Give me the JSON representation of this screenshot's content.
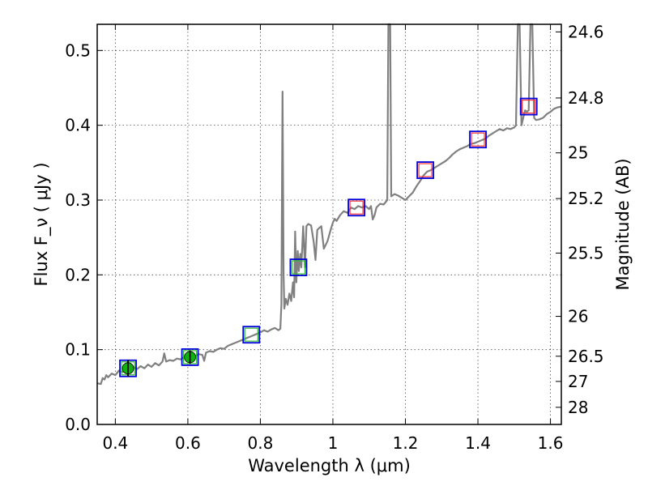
{
  "chart_data": {
    "type": "line",
    "title": "",
    "xlabel": "Wavelength  λ (μm)",
    "ylabel": "Flux  F_ν  ( μJy )",
    "y2label": "Magnitude (AB)",
    "xlim": [
      0.35,
      1.63
    ],
    "ylim": [
      0.0,
      0.535
    ],
    "x_ticks": [
      0.4,
      0.6,
      0.8,
      1.0,
      1.2,
      1.4,
      1.6
    ],
    "x_tick_labels": [
      "0.4",
      "0.6",
      "0.8",
      "1",
      "1.2",
      "1.4",
      "1.6"
    ],
    "y_ticks": [
      0.0,
      0.1,
      0.2,
      0.3,
      0.4,
      0.5
    ],
    "y_tick_labels": [
      "0.0",
      "0.1",
      "0.2",
      "0.3",
      "0.4",
      "0.5"
    ],
    "y2_ticks": [
      {
        "label": "24.6",
        "flux": 0.5248
      },
      {
        "label": "24.8",
        "flux": 0.4365
      },
      {
        "label": "25",
        "flux": 0.3631
      },
      {
        "label": "25.2",
        "flux": 0.302
      },
      {
        "label": "25.5",
        "flux": 0.2291
      },
      {
        "label": "26",
        "flux": 0.1445
      },
      {
        "label": "26.5",
        "flux": 0.0912
      },
      {
        "label": "27",
        "flux": 0.0575
      },
      {
        "label": "28",
        "flux": 0.0229
      }
    ],
    "grid": true,
    "colors": {
      "spectrum": "#808080",
      "observed_marker": "#10b010",
      "model_box": "#0000dd",
      "model_inner_red": "#ff3333",
      "model_inner_green": "#33bb33"
    },
    "series": [
      {
        "kind": "spectrum",
        "points": [
          [
            0.35,
            0.055
          ],
          [
            0.36,
            0.054
          ],
          [
            0.365,
            0.062
          ],
          [
            0.37,
            0.06
          ],
          [
            0.375,
            0.066
          ],
          [
            0.38,
            0.063
          ],
          [
            0.39,
            0.068
          ],
          [
            0.4,
            0.066
          ],
          [
            0.41,
            0.072
          ],
          [
            0.42,
            0.07
          ],
          [
            0.43,
            0.075
          ],
          [
            0.44,
            0.073
          ],
          [
            0.45,
            0.077
          ],
          [
            0.46,
            0.074
          ],
          [
            0.47,
            0.078
          ],
          [
            0.48,
            0.075
          ],
          [
            0.49,
            0.08
          ],
          [
            0.5,
            0.077
          ],
          [
            0.51,
            0.082
          ],
          [
            0.52,
            0.079
          ],
          [
            0.53,
            0.084
          ],
          [
            0.535,
            0.095
          ],
          [
            0.54,
            0.084
          ],
          [
            0.55,
            0.086
          ],
          [
            0.56,
            0.085
          ],
          [
            0.57,
            0.088
          ],
          [
            0.58,
            0.087
          ],
          [
            0.59,
            0.09
          ],
          [
            0.6,
            0.089
          ],
          [
            0.61,
            0.092
          ],
          [
            0.62,
            0.091
          ],
          [
            0.63,
            0.094
          ],
          [
            0.64,
            0.093
          ],
          [
            0.645,
            0.085
          ],
          [
            0.65,
            0.096
          ],
          [
            0.66,
            0.098
          ],
          [
            0.67,
            0.097
          ],
          [
            0.68,
            0.1
          ],
          [
            0.69,
            0.102
          ],
          [
            0.7,
            0.101
          ],
          [
            0.71,
            0.105
          ],
          [
            0.72,
            0.107
          ],
          [
            0.73,
            0.109
          ],
          [
            0.74,
            0.111
          ],
          [
            0.75,
            0.113
          ],
          [
            0.76,
            0.115
          ],
          [
            0.77,
            0.117
          ],
          [
            0.78,
            0.119
          ],
          [
            0.79,
            0.121
          ],
          [
            0.8,
            0.123
          ],
          [
            0.81,
            0.126
          ],
          [
            0.82,
            0.124
          ],
          [
            0.83,
            0.127
          ],
          [
            0.84,
            0.129
          ],
          [
            0.85,
            0.126
          ],
          [
            0.855,
            0.128
          ],
          [
            0.858,
            0.16
          ],
          [
            0.861,
            0.445
          ],
          [
            0.864,
            0.2
          ],
          [
            0.866,
            0.155
          ],
          [
            0.87,
            0.168
          ],
          [
            0.875,
            0.16
          ],
          [
            0.88,
            0.175
          ],
          [
            0.885,
            0.165
          ],
          [
            0.89,
            0.19
          ],
          [
            0.893,
            0.17
          ],
          [
            0.896,
            0.258
          ],
          [
            0.899,
            0.19
          ],
          [
            0.903,
            0.232
          ],
          [
            0.906,
            0.205
          ],
          [
            0.91,
            0.228
          ],
          [
            0.913,
            0.21
          ],
          [
            0.918,
            0.265
          ],
          [
            0.923,
            0.21
          ],
          [
            0.927,
            0.265
          ],
          [
            0.932,
            0.268
          ],
          [
            0.94,
            0.266
          ],
          [
            0.947,
            0.244
          ],
          [
            0.952,
            0.22
          ],
          [
            0.957,
            0.26
          ],
          [
            0.963,
            0.263
          ],
          [
            0.968,
            0.265
          ],
          [
            0.975,
            0.235
          ],
          [
            0.985,
            0.245
          ],
          [
            0.995,
            0.262
          ],
          [
            1.0,
            0.27
          ],
          [
            1.005,
            0.275
          ],
          [
            1.01,
            0.272
          ],
          [
            1.02,
            0.28
          ],
          [
            1.03,
            0.285
          ],
          [
            1.04,
            0.283
          ],
          [
            1.05,
            0.29
          ],
          [
            1.06,
            0.288
          ],
          [
            1.07,
            0.292
          ],
          [
            1.08,
            0.29
          ],
          [
            1.09,
            0.292
          ],
          [
            1.1,
            0.288
          ],
          [
            1.105,
            0.292
          ],
          [
            1.11,
            0.274
          ],
          [
            1.115,
            0.28
          ],
          [
            1.12,
            0.29
          ],
          [
            1.13,
            0.295
          ],
          [
            1.14,
            0.294
          ],
          [
            1.15,
            0.3
          ],
          [
            1.153,
            0.535
          ],
          [
            1.158,
            0.535
          ],
          [
            1.161,
            0.305
          ],
          [
            1.17,
            0.308
          ],
          [
            1.18,
            0.306
          ],
          [
            1.19,
            0.303
          ],
          [
            1.2,
            0.3
          ],
          [
            1.21,
            0.305
          ],
          [
            1.22,
            0.31
          ],
          [
            1.23,
            0.318
          ],
          [
            1.24,
            0.325
          ],
          [
            1.25,
            0.333
          ],
          [
            1.26,
            0.338
          ],
          [
            1.27,
            0.34
          ],
          [
            1.28,
            0.343
          ],
          [
            1.29,
            0.346
          ],
          [
            1.3,
            0.349
          ],
          [
            1.31,
            0.352
          ],
          [
            1.32,
            0.356
          ],
          [
            1.33,
            0.361
          ],
          [
            1.34,
            0.365
          ],
          [
            1.35,
            0.368
          ],
          [
            1.36,
            0.37
          ],
          [
            1.37,
            0.372
          ],
          [
            1.38,
            0.375
          ],
          [
            1.39,
            0.376
          ],
          [
            1.4,
            0.378
          ],
          [
            1.41,
            0.38
          ],
          [
            1.42,
            0.382
          ],
          [
            1.43,
            0.386
          ],
          [
            1.44,
            0.389
          ],
          [
            1.45,
            0.392
          ],
          [
            1.46,
            0.395
          ],
          [
            1.47,
            0.393
          ],
          [
            1.48,
            0.396
          ],
          [
            1.49,
            0.395
          ],
          [
            1.5,
            0.397
          ],
          [
            1.505,
            0.4
          ],
          [
            1.51,
            0.535
          ],
          [
            1.515,
            0.535
          ],
          [
            1.52,
            0.4
          ],
          [
            1.525,
            0.41
          ],
          [
            1.53,
            0.42
          ],
          [
            1.535,
            0.418
          ],
          [
            1.54,
            0.42
          ],
          [
            1.545,
            0.535
          ],
          [
            1.55,
            0.535
          ],
          [
            1.555,
            0.41
          ],
          [
            1.56,
            0.407
          ],
          [
            1.57,
            0.408
          ],
          [
            1.58,
            0.41
          ],
          [
            1.59,
            0.415
          ],
          [
            1.6,
            0.418
          ],
          [
            1.61,
            0.422
          ],
          [
            1.62,
            0.424
          ],
          [
            1.63,
            0.425
          ]
        ]
      },
      {
        "kind": "observed_photometry",
        "points": [
          {
            "x": 0.435,
            "y": 0.075,
            "err": 0.011
          },
          {
            "x": 0.606,
            "y": 0.09,
            "err": 0.009
          }
        ]
      },
      {
        "kind": "model_band_flux",
        "points": [
          {
            "x": 0.435,
            "y": 0.075,
            "inner": "green"
          },
          {
            "x": 0.606,
            "y": 0.09,
            "inner": "green"
          },
          {
            "x": 0.775,
            "y": 0.12,
            "inner": "green"
          },
          {
            "x": 0.905,
            "y": 0.21,
            "inner": "green"
          },
          {
            "x": 1.065,
            "y": 0.29,
            "inner": "red"
          },
          {
            "x": 1.255,
            "y": 0.34,
            "inner": "red"
          },
          {
            "x": 1.4,
            "y": 0.381,
            "inner": "red"
          },
          {
            "x": 1.54,
            "y": 0.425,
            "inner": "red"
          }
        ]
      }
    ]
  }
}
